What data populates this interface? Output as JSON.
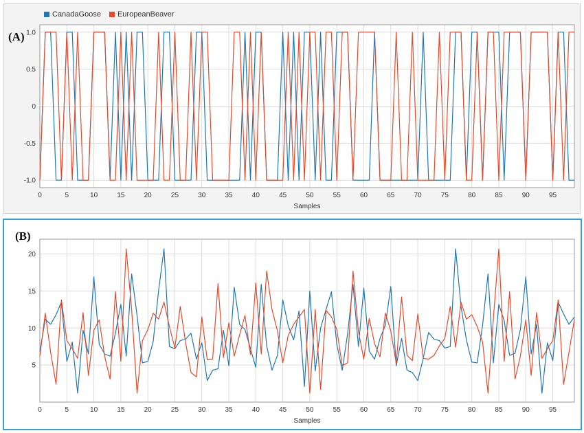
{
  "colors": {
    "CanadaGoose": "#1f77b4",
    "EuropeanBeaver": "#e8492a"
  },
  "legend": [
    {
      "name": "CanadaGoose",
      "color": "#1f77b4"
    },
    {
      "name": "EuropeanBeaver",
      "color": "#e8492a"
    }
  ],
  "chart_data": [
    {
      "panel_label": "(A)",
      "type": "line",
      "xlabel": "Samples",
      "ylabel": "",
      "xlim": [
        0,
        99
      ],
      "ylim": [
        -1.1,
        1.1
      ],
      "xticks": [
        0,
        5,
        10,
        15,
        20,
        25,
        30,
        35,
        40,
        45,
        50,
        55,
        60,
        65,
        70,
        75,
        80,
        85,
        90,
        95
      ],
      "yticks": [
        {
          "value": 1,
          "label": "1.0"
        },
        {
          "value": 0.5,
          "label": "0.5"
        },
        {
          "value": 0,
          "label": "0"
        },
        {
          "value": -0.5,
          "label": "-0.5"
        },
        {
          "value": -1,
          "label": "-1.0"
        }
      ],
      "series": [
        {
          "name": "CanadaGoose",
          "values": [
            -1,
            1,
            1,
            -1,
            -1,
            1,
            1,
            -1,
            -1,
            -1,
            1,
            1,
            1,
            -1,
            1,
            -1,
            1,
            -1,
            1,
            1,
            -1,
            -1,
            -1,
            1,
            1,
            -1,
            -1,
            -1,
            -1,
            1,
            1,
            -1,
            -1,
            -1,
            -1,
            -1,
            -1,
            -1,
            1,
            -1,
            1,
            1,
            -1,
            -1,
            -1,
            1,
            -1,
            1,
            -1,
            1,
            1,
            -1,
            1,
            -1,
            -1,
            1,
            1,
            1,
            -1,
            -1,
            -1,
            -1,
            1,
            -1,
            -1,
            -1,
            -1,
            -1,
            -1,
            -1,
            -1,
            1,
            -1,
            -1,
            -1,
            -1,
            -1,
            1,
            1,
            -1,
            1,
            1,
            -1,
            1,
            1,
            1,
            -1,
            1,
            1,
            1,
            -1,
            1,
            1,
            1,
            1,
            -1,
            1,
            1,
            -1,
            -1
          ]
        },
        {
          "name": "EuropeanBeaver",
          "values": [
            -1,
            1,
            1,
            1,
            -1,
            1,
            -1,
            1,
            -1,
            -1,
            1,
            1,
            1,
            -1,
            -1,
            1,
            -1,
            1,
            -1,
            -1,
            -1,
            -1,
            1,
            -1,
            -1,
            1,
            -1,
            -1,
            1,
            -1,
            1,
            1,
            -1,
            -1,
            -1,
            -1,
            1,
            1,
            -1,
            1,
            -1,
            1,
            -1,
            -1,
            -1,
            -1,
            1,
            -1,
            1,
            -1,
            1,
            1,
            -1,
            1,
            1,
            -1,
            1,
            1,
            -1,
            1,
            1,
            1,
            1,
            -1,
            -1,
            -1,
            1,
            -1,
            -1,
            1,
            -1,
            -1,
            -1,
            -1,
            1,
            -1,
            1,
            1,
            1,
            -1,
            -1,
            1,
            -1,
            1,
            1,
            -1,
            1,
            1,
            1,
            1,
            -1,
            1,
            1,
            1,
            1,
            -1,
            1,
            -1,
            1,
            1
          ]
        }
      ]
    },
    {
      "panel_label": "(B)",
      "type": "line",
      "xlabel": "Samples",
      "ylabel": "",
      "xlim": [
        0,
        99
      ],
      "ylim": [
        0,
        22
      ],
      "xticks": [
        0,
        5,
        10,
        15,
        20,
        25,
        30,
        35,
        40,
        45,
        50,
        55,
        60,
        65,
        70,
        75,
        80,
        85,
        90,
        95
      ],
      "yticks": [
        {
          "value": 20,
          "label": "20"
        },
        {
          "value": 15,
          "label": "15"
        },
        {
          "value": 10,
          "label": "10"
        },
        {
          "value": 5,
          "label": "5"
        }
      ],
      "series": [
        {
          "name": "CanadaGoose",
          "values": [
            6.8,
            11.2,
            10.5,
            11.8,
            13.5,
            5.5,
            8.1,
            1.2,
            9.7,
            6.5,
            16.9,
            7.8,
            6.5,
            6.2,
            9.3,
            13.2,
            6.2,
            17.3,
            11.7,
            5.3,
            5.5,
            8.2,
            15.1,
            20.7,
            7.5,
            7.2,
            8.3,
            8.5,
            9.3,
            5.8,
            8.0,
            2.9,
            4.3,
            4.5,
            9.7,
            4.9,
            15.5,
            10.5,
            9.8,
            7.2,
            4.7,
            15.9,
            7.6,
            4.3,
            6.3,
            13.8,
            10.3,
            8.4,
            12.3,
            2.1,
            15.0,
            4.2,
            10.0,
            12.5,
            14.9,
            7.8,
            4.3,
            9.2,
            15.9,
            7.5,
            15.4,
            6.9,
            5.8,
            8.6,
            10.4,
            15.6,
            4.9,
            8.6,
            4.3,
            4.0,
            2.9,
            5.9,
            9.4,
            8.5,
            8.3,
            7.3,
            7.5,
            20.7,
            12.9,
            8.4,
            5.4,
            5.3,
            10.4,
            17.3,
            5.3,
            13.2,
            11.0,
            6.3,
            6.6,
            9.8,
            16.9,
            6.5,
            10.5,
            1.2,
            8.0,
            5.6,
            13.5,
            11.9,
            10.5,
            11.5
          ]
        },
        {
          "name": "EuropeanBeaver",
          "values": [
            6.2,
            12.0,
            6.7,
            2.4,
            13.8,
            8.3,
            7.2,
            5.9,
            12.1,
            3.6,
            9.7,
            11.1,
            6.2,
            3.1,
            14.9,
            5.5,
            20.7,
            12.5,
            1.2,
            8.3,
            9.8,
            12.0,
            11.2,
            13.5,
            10.2,
            7.3,
            12.9,
            8.0,
            4.0,
            3.4,
            11.5,
            5.7,
            5.8,
            16.0,
            6.0,
            10.7,
            6.2,
            9.1,
            11.7,
            6.4,
            16.1,
            6.5,
            17.7,
            12.5,
            9.6,
            5.3,
            9.0,
            10.5,
            11.5,
            12.5,
            1.2,
            12.5,
            1.7,
            12.4,
            11.5,
            9.8,
            4.9,
            5.3,
            17.7,
            9.5,
            5.8,
            11.3,
            7.9,
            6.1,
            12.0,
            9.6,
            5.2,
            14.2,
            6.3,
            5.6,
            11.9,
            5.9,
            5.8,
            6.3,
            7.6,
            8.6,
            12.9,
            7.4,
            13.5,
            11.2,
            11.8,
            10.2,
            8.1,
            1.2,
            11.3,
            20.7,
            5.5,
            14.9,
            3.1,
            6.2,
            11.1,
            3.6,
            12.1,
            5.9,
            7.2,
            8.3,
            13.8,
            2.4,
            6.7,
            11.2
          ]
        }
      ]
    }
  ]
}
